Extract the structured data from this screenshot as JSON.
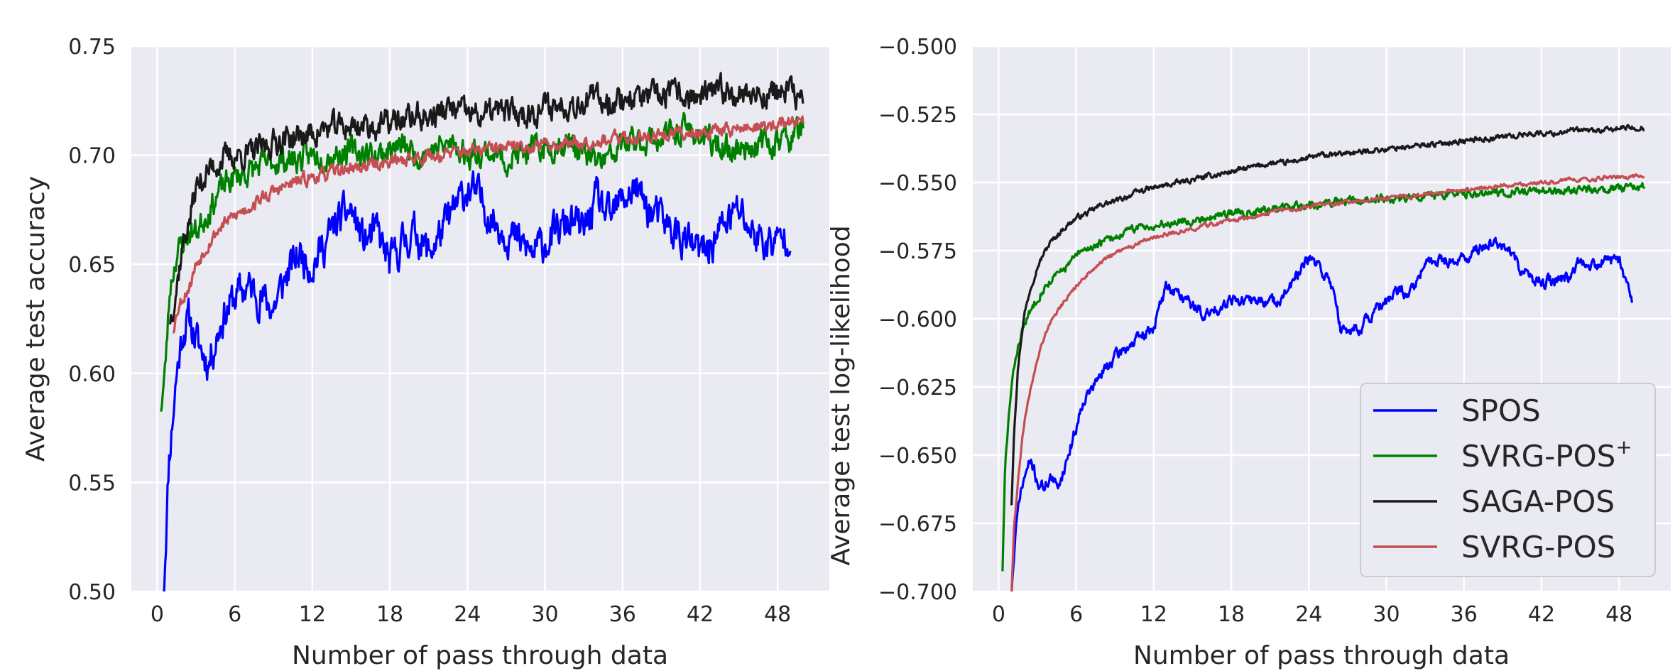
{
  "figure": {
    "background": "#ffffff",
    "panel_background": "#eaeaf2",
    "grid_color": "#ffffff"
  },
  "chart_data": [
    {
      "type": "line",
      "title": "",
      "xlabel": "Number of pass through data",
      "ylabel": "Average test accuracy",
      "xlim": [
        -2,
        52
      ],
      "ylim": [
        0.5,
        0.75
      ],
      "xticks": [
        0,
        6,
        12,
        18,
        24,
        30,
        36,
        42,
        48
      ],
      "yticks": [
        0.5,
        0.55,
        0.6,
        0.65,
        0.7,
        0.75
      ],
      "ytick_labels": [
        "0.50",
        "0.55",
        "0.60",
        "0.65",
        "0.70",
        "0.75"
      ],
      "grid": true,
      "legend": null,
      "series": [
        {
          "name": "SPOS",
          "color": "#0000ff",
          "noise": 0.007,
          "seed": 11,
          "x": [
            0.5,
            0.9,
            1.5,
            2.0,
            2.5,
            3.0,
            4.0,
            5.0,
            6.0,
            7.0,
            8.0,
            9.0,
            10.0,
            11.0,
            12.0,
            13.0,
            14.0,
            15.0,
            16.0,
            17.0,
            18.0,
            19.0,
            20.0,
            21.0,
            22.0,
            23.0,
            24.0,
            25.0,
            26.0,
            27.0,
            28.0,
            29.0,
            30.0,
            31.0,
            32.0,
            33.0,
            34.0,
            35.0,
            36.0,
            37.0,
            38.0,
            39.0,
            40.0,
            41.0,
            42.0,
            43.0,
            44.0,
            45.0,
            46.0,
            47.0,
            48.0,
            49.0
          ],
          "y": [
            0.5,
            0.56,
            0.6,
            0.62,
            0.625,
            0.615,
            0.605,
            0.625,
            0.635,
            0.64,
            0.635,
            0.63,
            0.645,
            0.655,
            0.65,
            0.66,
            0.67,
            0.675,
            0.66,
            0.665,
            0.65,
            0.66,
            0.665,
            0.655,
            0.665,
            0.675,
            0.685,
            0.68,
            0.67,
            0.665,
            0.66,
            0.655,
            0.66,
            0.665,
            0.67,
            0.665,
            0.68,
            0.67,
            0.68,
            0.685,
            0.675,
            0.67,
            0.665,
            0.66,
            0.655,
            0.66,
            0.67,
            0.675,
            0.665,
            0.66,
            0.66,
            0.665
          ]
        },
        {
          "name": "SVRG-POS+",
          "color": "#008000",
          "noise": 0.005,
          "seed": 23,
          "x": [
            0.3,
            0.6,
            1.0,
            1.5,
            2.0,
            2.5,
            3.0,
            4.0,
            5.0,
            6.0,
            7.0,
            8.0,
            9.0,
            10.0,
            11.0,
            12.0,
            13.0,
            14.0,
            15.0,
            16.0,
            17.0,
            18.0,
            19.0,
            20.0,
            21.0,
            22.0,
            23.0,
            24.0,
            25.0,
            26.0,
            27.0,
            28.0,
            29.0,
            30.0,
            31.0,
            32.0,
            33.0,
            34.0,
            35.0,
            36.0,
            37.0,
            38.0,
            39.0,
            40.0,
            41.0,
            42.0,
            43.0,
            44.0,
            45.0,
            46.0,
            47.0,
            48.0,
            49.0,
            50.0
          ],
          "y": [
            0.585,
            0.6,
            0.64,
            0.655,
            0.66,
            0.665,
            0.665,
            0.675,
            0.685,
            0.69,
            0.692,
            0.695,
            0.697,
            0.698,
            0.698,
            0.7,
            0.7,
            0.701,
            0.702,
            0.701,
            0.7,
            0.703,
            0.704,
            0.7,
            0.702,
            0.704,
            0.705,
            0.7,
            0.702,
            0.701,
            0.698,
            0.7,
            0.702,
            0.703,
            0.705,
            0.706,
            0.7,
            0.697,
            0.698,
            0.705,
            0.706,
            0.707,
            0.708,
            0.71,
            0.712,
            0.709,
            0.705,
            0.703,
            0.703,
            0.705,
            0.705,
            0.707,
            0.708,
            0.713
          ]
        },
        {
          "name": "SAGA-POS",
          "color": "#1a1a1a",
          "noise": 0.005,
          "seed": 37,
          "x": [
            1.0,
            1.5,
            2.0,
            2.5,
            3.0,
            4.0,
            5.0,
            6.0,
            7.0,
            8.0,
            9.0,
            10.0,
            11.0,
            12.0,
            13.0,
            14.0,
            15.0,
            16.0,
            17.0,
            18.0,
            19.0,
            20.0,
            21.0,
            22.0,
            23.0,
            24.0,
            25.0,
            26.0,
            27.0,
            28.0,
            29.0,
            30.0,
            31.0,
            32.0,
            33.0,
            34.0,
            35.0,
            36.0,
            37.0,
            38.0,
            39.0,
            40.0,
            41.0,
            42.0,
            43.0,
            44.0,
            45.0,
            46.0,
            47.0,
            48.0,
            49.0,
            50.0
          ],
          "y": [
            0.625,
            0.64,
            0.66,
            0.67,
            0.685,
            0.693,
            0.698,
            0.7,
            0.7,
            0.703,
            0.706,
            0.708,
            0.708,
            0.71,
            0.712,
            0.713,
            0.713,
            0.714,
            0.713,
            0.715,
            0.716,
            0.718,
            0.717,
            0.72,
            0.721,
            0.719,
            0.718,
            0.72,
            0.72,
            0.719,
            0.72,
            0.722,
            0.723,
            0.724,
            0.725,
            0.726,
            0.725,
            0.726,
            0.727,
            0.726,
            0.727,
            0.728,
            0.727,
            0.726,
            0.728,
            0.73,
            0.729,
            0.728,
            0.728,
            0.729,
            0.729,
            0.725
          ]
        },
        {
          "name": "SVRG-POS",
          "color": "#c44e52",
          "noise": 0.0025,
          "seed": 53,
          "x": [
            1.2,
            1.6,
            2.0,
            2.5,
            3.0,
            3.5,
            4.0,
            5.0,
            6.0,
            7.0,
            8.0,
            9.0,
            10.0,
            11.0,
            12.0,
            13.0,
            14.0,
            15.0,
            16.0,
            17.0,
            18.0,
            19.0,
            20.0,
            21.0,
            22.0,
            23.0,
            24.0,
            25.0,
            26.0,
            27.0,
            28.0,
            29.0,
            30.0,
            31.0,
            32.0,
            33.0,
            34.0,
            35.0,
            36.0,
            37.0,
            38.0,
            39.0,
            40.0,
            41.0,
            42.0,
            43.0,
            44.0,
            45.0,
            46.0,
            47.0,
            48.0,
            49.0,
            50.0
          ],
          "y": [
            0.62,
            0.63,
            0.635,
            0.64,
            0.65,
            0.655,
            0.66,
            0.668,
            0.672,
            0.676,
            0.68,
            0.683,
            0.686,
            0.688,
            0.69,
            0.691,
            0.693,
            0.694,
            0.695,
            0.696,
            0.697,
            0.698,
            0.699,
            0.7,
            0.7,
            0.701,
            0.702,
            0.702,
            0.703,
            0.703,
            0.704,
            0.704,
            0.705,
            0.705,
            0.706,
            0.706,
            0.707,
            0.707,
            0.708,
            0.708,
            0.709,
            0.709,
            0.71,
            0.71,
            0.711,
            0.711,
            0.712,
            0.712,
            0.713,
            0.713,
            0.714,
            0.715,
            0.716
          ]
        }
      ]
    },
    {
      "type": "line",
      "title": "",
      "xlabel": "Number of pass through data",
      "ylabel": "Average test log-likelihood",
      "xlim": [
        -2,
        52
      ],
      "ylim": [
        -0.7,
        -0.5
      ],
      "xticks": [
        0,
        6,
        12,
        18,
        24,
        30,
        36,
        42,
        48
      ],
      "yticks": [
        -0.7,
        -0.675,
        -0.65,
        -0.625,
        -0.6,
        -0.575,
        -0.55,
        -0.525,
        -0.5
      ],
      "ytick_labels": [
        "−0.700",
        "−0.675",
        "−0.650",
        "−0.625",
        "−0.600",
        "−0.575",
        "−0.550",
        "−0.525",
        "−0.500"
      ],
      "grid": true,
      "legend": {
        "placement": "lower right",
        "entries": [
          {
            "label": "SPOS",
            "color": "#0000ff"
          },
          {
            "label": "SVRG-POS",
            "sup": "+",
            "color": "#008000"
          },
          {
            "label": "SAGA-POS",
            "color": "#1a1a1a"
          },
          {
            "label": "SVRG-POS",
            "color": "#c44e52"
          }
        ]
      },
      "series": [
        {
          "name": "SPOS",
          "color": "#0000ff",
          "noise": 0.0018,
          "seed": 71,
          "x": [
            1.0,
            1.3,
            1.6,
            2.0,
            2.5,
            3.0,
            3.5,
            4.0,
            4.5,
            5.0,
            5.5,
            6.0,
            6.5,
            7.0,
            8.0,
            9.0,
            10.0,
            11.0,
            12.0,
            12.5,
            13.0,
            14.0,
            15.0,
            16.0,
            17.0,
            18.0,
            19.0,
            20.0,
            21.0,
            22.0,
            23.0,
            24.0,
            25.0,
            26.0,
            26.5,
            27.0,
            28.0,
            29.0,
            30.0,
            31.0,
            32.0,
            33.0,
            34.0,
            35.0,
            36.0,
            37.0,
            38.0,
            39.0,
            40.0,
            41.0,
            42.0,
            43.0,
            44.0,
            45.0,
            46.0,
            47.0,
            48.0,
            48.5,
            49.0
          ],
          "y": [
            -0.7,
            -0.68,
            -0.666,
            -0.658,
            -0.652,
            -0.66,
            -0.662,
            -0.658,
            -0.662,
            -0.656,
            -0.648,
            -0.64,
            -0.63,
            -0.627,
            -0.62,
            -0.614,
            -0.61,
            -0.607,
            -0.603,
            -0.595,
            -0.588,
            -0.591,
            -0.595,
            -0.599,
            -0.596,
            -0.592,
            -0.594,
            -0.593,
            -0.594,
            -0.592,
            -0.585,
            -0.578,
            -0.582,
            -0.59,
            -0.605,
            -0.604,
            -0.603,
            -0.598,
            -0.594,
            -0.59,
            -0.59,
            -0.58,
            -0.578,
            -0.579,
            -0.578,
            -0.575,
            -0.572,
            -0.573,
            -0.579,
            -0.585,
            -0.587,
            -0.586,
            -0.585,
            -0.578,
            -0.58,
            -0.579,
            -0.578,
            -0.585,
            -0.592
          ]
        },
        {
          "name": "SVRG-POS+",
          "color": "#008000",
          "noise": 0.0012,
          "seed": 83,
          "x": [
            0.3,
            0.5,
            0.8,
            1.0,
            1.3,
            1.6,
            2.0,
            2.5,
            3.0,
            3.5,
            4.0,
            5.0,
            6.0,
            7.0,
            8.0,
            9.0,
            10.0,
            11.0,
            12.0,
            13.0,
            14.0,
            15.0,
            16.0,
            17.0,
            18.0,
            19.0,
            20.0,
            21.0,
            22.0,
            23.0,
            24.0,
            25.0,
            26.0,
            27.0,
            28.0,
            29.0,
            30.0,
            31.0,
            32.0,
            33.0,
            34.0,
            35.0,
            36.0,
            37.0,
            38.0,
            39.0,
            40.0,
            41.0,
            42.0,
            43.0,
            44.0,
            45.0,
            46.0,
            47.0,
            48.0,
            49.0,
            50.0
          ],
          "y": [
            -0.692,
            -0.655,
            -0.635,
            -0.625,
            -0.615,
            -0.608,
            -0.602,
            -0.597,
            -0.592,
            -0.589,
            -0.586,
            -0.582,
            -0.577,
            -0.574,
            -0.572,
            -0.57,
            -0.568,
            -0.566,
            -0.566,
            -0.565,
            -0.564,
            -0.564,
            -0.563,
            -0.562,
            -0.561,
            -0.561,
            -0.56,
            -0.56,
            -0.559,
            -0.559,
            -0.558,
            -0.558,
            -0.557,
            -0.557,
            -0.557,
            -0.556,
            -0.556,
            -0.556,
            -0.555,
            -0.555,
            -0.555,
            -0.555,
            -0.554,
            -0.554,
            -0.554,
            -0.554,
            -0.553,
            -0.553,
            -0.553,
            -0.553,
            -0.553,
            -0.553,
            -0.553,
            -0.553,
            -0.552,
            -0.552,
            -0.552
          ]
        },
        {
          "name": "SAGA-POS",
          "color": "#1a1a1a",
          "noise": 0.0008,
          "seed": 97,
          "x": [
            1.0,
            1.2,
            1.5,
            1.8,
            2.0,
            2.5,
            3.0,
            3.5,
            4.0,
            5.0,
            6.0,
            7.0,
            8.0,
            9.0,
            10.0,
            11.0,
            12.0,
            13.0,
            14.0,
            15.0,
            16.0,
            17.0,
            18.0,
            19.0,
            20.0,
            21.0,
            22.0,
            23.0,
            24.0,
            25.0,
            26.0,
            27.0,
            28.0,
            29.0,
            30.0,
            31.0,
            32.0,
            33.0,
            34.0,
            35.0,
            36.0,
            37.0,
            38.0,
            39.0,
            40.0,
            41.0,
            42.0,
            43.0,
            44.0,
            45.0,
            46.0,
            47.0,
            48.0,
            49.0,
            50.0
          ],
          "y": [
            -0.668,
            -0.64,
            -0.618,
            -0.605,
            -0.598,
            -0.588,
            -0.581,
            -0.576,
            -0.572,
            -0.567,
            -0.563,
            -0.561,
            -0.558,
            -0.557,
            -0.555,
            -0.553,
            -0.552,
            -0.551,
            -0.55,
            -0.549,
            -0.548,
            -0.547,
            -0.546,
            -0.545,
            -0.544,
            -0.543,
            -0.543,
            -0.542,
            -0.541,
            -0.54,
            -0.54,
            -0.539,
            -0.539,
            -0.538,
            -0.538,
            -0.537,
            -0.537,
            -0.536,
            -0.536,
            -0.535,
            -0.535,
            -0.534,
            -0.534,
            -0.533,
            -0.533,
            -0.532,
            -0.532,
            -0.532,
            -0.531,
            -0.531,
            -0.531,
            -0.531,
            -0.53,
            -0.53,
            -0.53
          ]
        },
        {
          "name": "SVRG-POS",
          "color": "#c44e52",
          "noise": 0.0006,
          "seed": 109,
          "x": [
            1.0,
            1.2,
            1.5,
            1.8,
            2.0,
            2.5,
            3.0,
            3.5,
            4.0,
            5.0,
            6.0,
            7.0,
            8.0,
            9.0,
            10.0,
            11.0,
            12.0,
            13.0,
            14.0,
            15.0,
            16.0,
            17.0,
            18.0,
            19.0,
            20.0,
            21.0,
            22.0,
            23.0,
            24.0,
            25.0,
            26.0,
            27.0,
            28.0,
            29.0,
            30.0,
            31.0,
            32.0,
            33.0,
            34.0,
            35.0,
            36.0,
            37.0,
            38.0,
            39.0,
            40.0,
            41.0,
            42.0,
            43.0,
            44.0,
            45.0,
            46.0,
            47.0,
            48.0,
            49.0,
            50.0
          ],
          "y": [
            -0.7,
            -0.675,
            -0.66,
            -0.645,
            -0.638,
            -0.625,
            -0.615,
            -0.607,
            -0.601,
            -0.594,
            -0.588,
            -0.583,
            -0.579,
            -0.576,
            -0.574,
            -0.572,
            -0.57,
            -0.569,
            -0.568,
            -0.567,
            -0.566,
            -0.565,
            -0.564,
            -0.563,
            -0.562,
            -0.561,
            -0.56,
            -0.56,
            -0.559,
            -0.558,
            -0.558,
            -0.557,
            -0.557,
            -0.556,
            -0.556,
            -0.555,
            -0.555,
            -0.554,
            -0.554,
            -0.553,
            -0.553,
            -0.552,
            -0.552,
            -0.551,
            -0.551,
            -0.551,
            -0.55,
            -0.55,
            -0.549,
            -0.549,
            -0.549,
            -0.548,
            -0.548,
            -0.548,
            -0.547
          ]
        }
      ]
    }
  ]
}
